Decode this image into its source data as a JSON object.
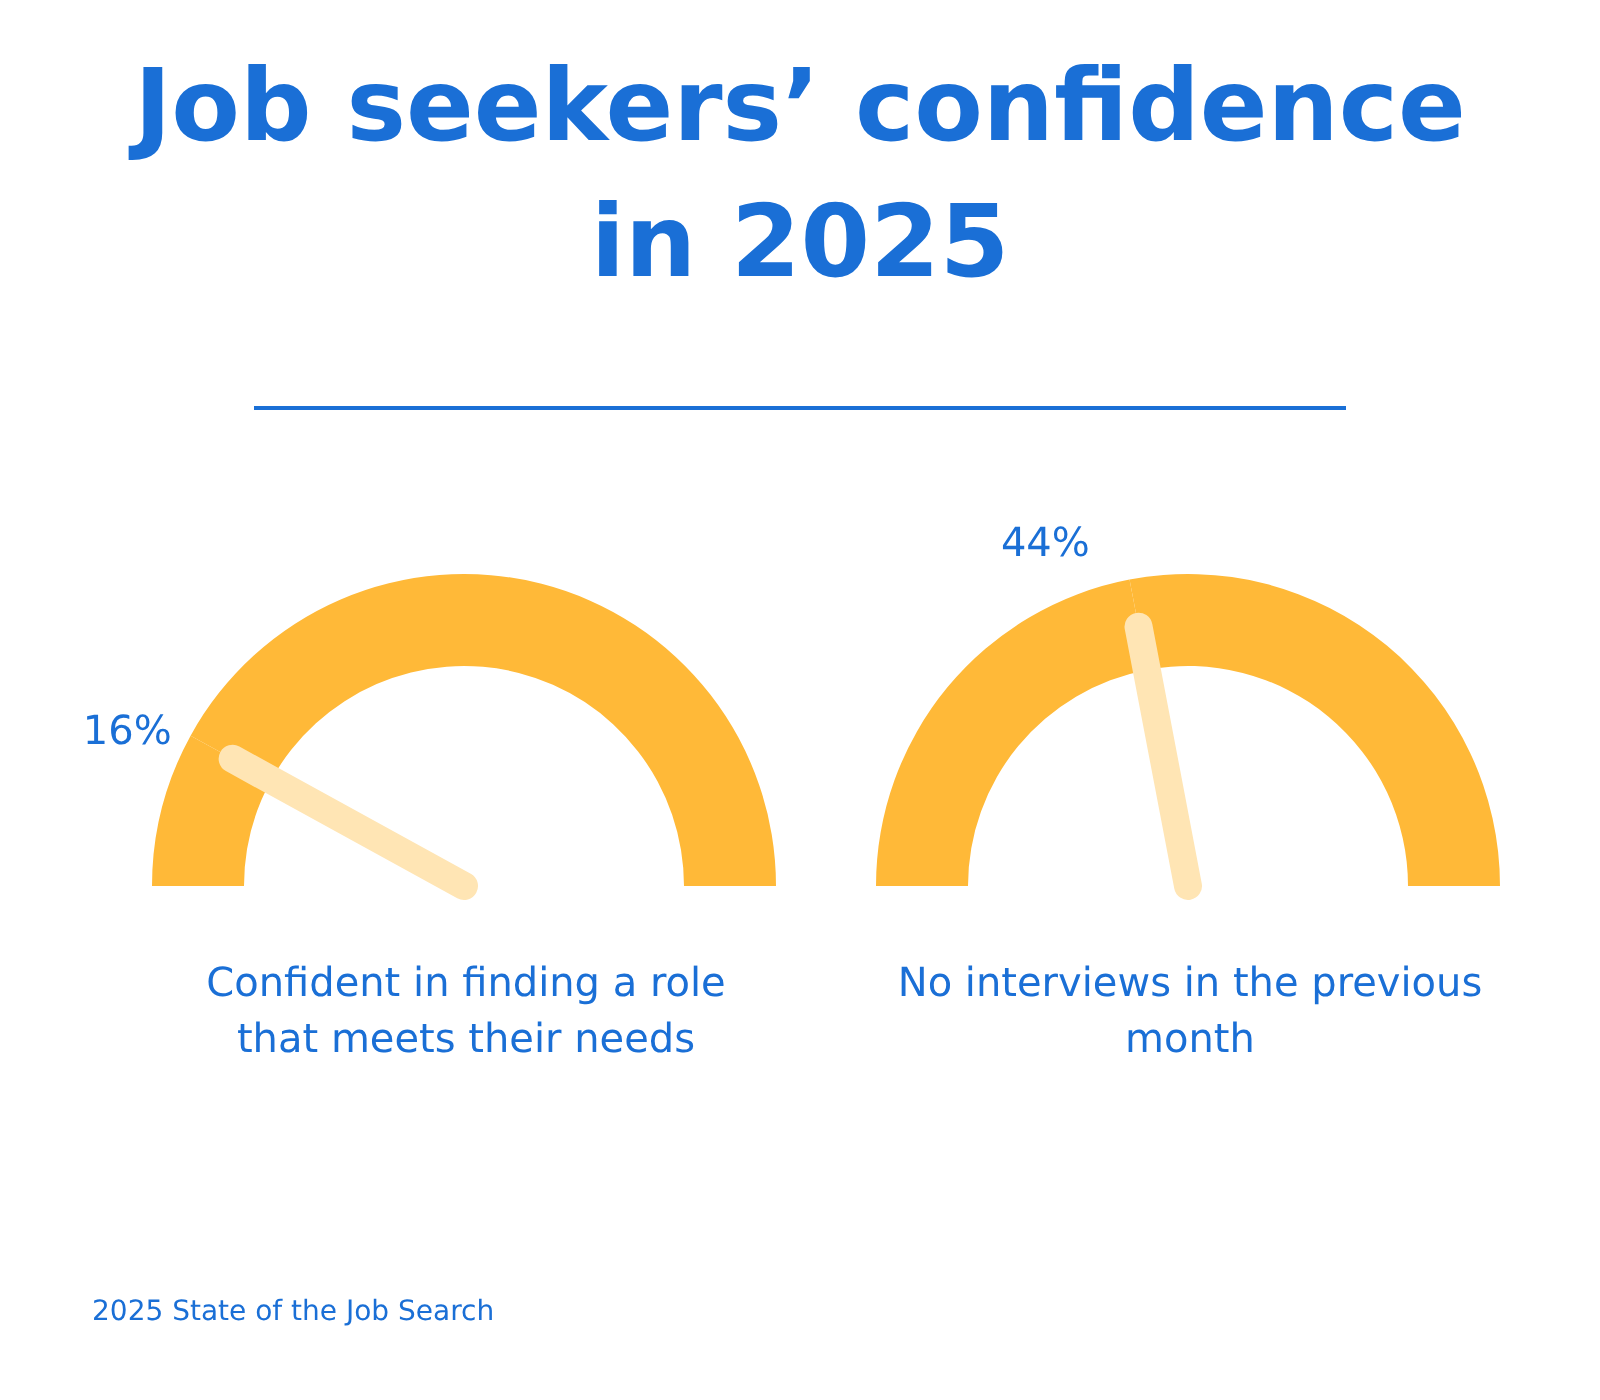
{
  "chart_data": [
    {
      "type": "other",
      "title": "Job seekers’ confidence in 2025",
      "annotations": [
        "2025 State of the Job Search"
      ]
    },
    {
      "type": "donut",
      "categories": [
        "16%",
        null
      ],
      "values": [
        16,
        84
      ],
      "colors": [
        "#ffb938",
        "#ffb938"
      ],
      "needle": "16%",
      "xlabel": "Confident in finding a role that meets their needs"
    },
    {
      "type": "donut",
      "categories": [
        "44%",
        null
      ],
      "values": [
        44,
        56
      ],
      "colors": [
        "#ffb938",
        "#ffb938"
      ],
      "needle": "44%",
      "xlabel": "No interviews in the previous month"
    }
  ]
}
